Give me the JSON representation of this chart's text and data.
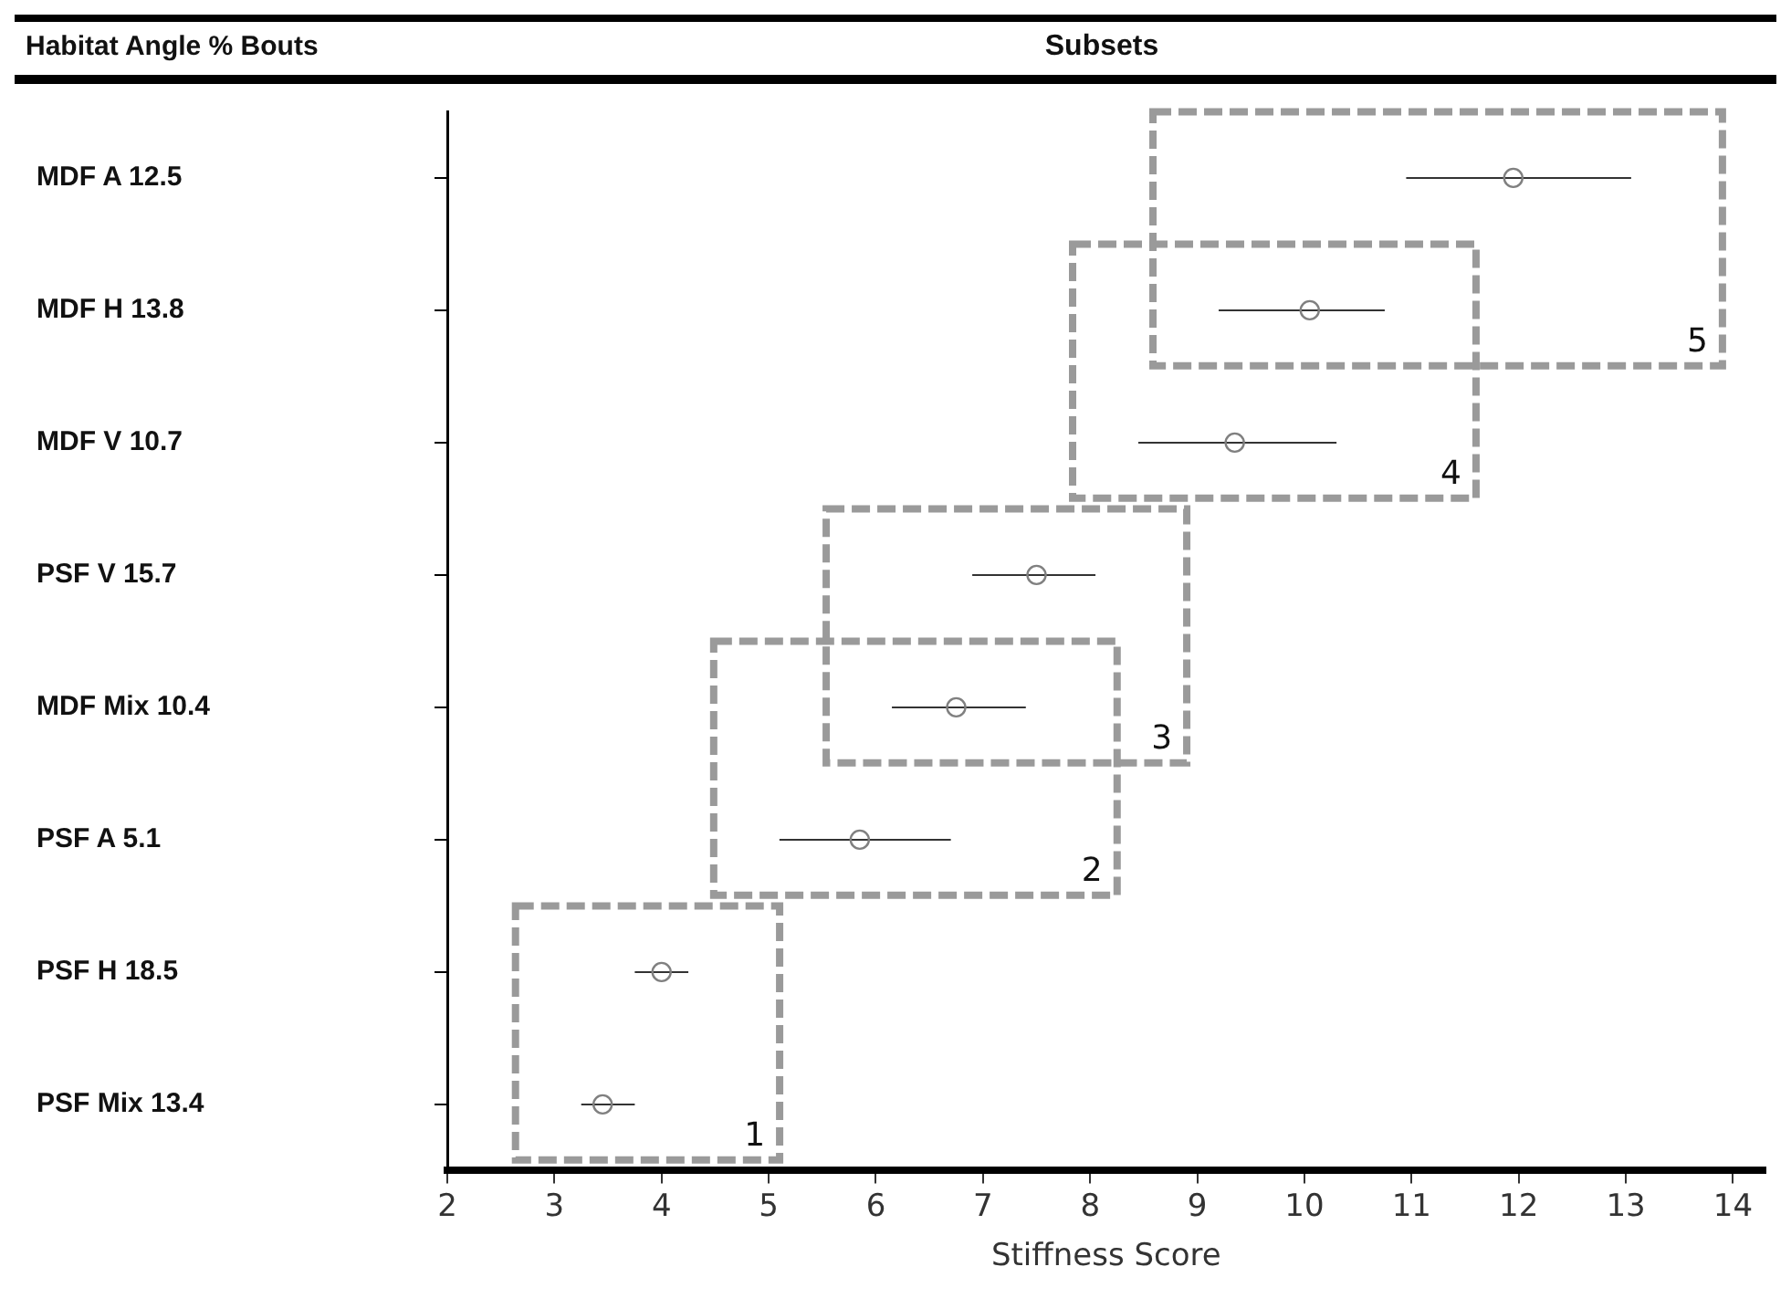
{
  "chart_data": {
    "type": "scatter",
    "orientation": "horizontal",
    "title": "Subsets",
    "xlabel": "Stiffness Score",
    "categories": [
      "MDF A 12.5",
      "MDF H 13.8",
      "MDF V 10.7",
      "PSF V 15.7",
      "MDF Mix 10.4",
      "PSF A 5.1",
      "PSF H 18.5",
      "PSF Mix 13.4"
    ],
    "series": [
      {
        "color": "#808080",
        "values": [
          11.95,
          10.05,
          9.35,
          7.5,
          6.75,
          5.85,
          4.0,
          3.45
        ],
        "errors": [
          [
            10.95,
            13.05
          ],
          [
            9.2,
            10.75
          ],
          [
            8.45,
            10.3
          ],
          [
            6.9,
            8.05
          ],
          [
            6.15,
            7.4
          ],
          [
            5.1,
            6.7
          ],
          [
            3.75,
            4.25
          ],
          [
            3.25,
            3.75
          ]
        ]
      }
    ],
    "xlim": [
      2,
      14.3
    ],
    "xticks": [
      2,
      3,
      4,
      5,
      6,
      7,
      8,
      9,
      10,
      11,
      12,
      13,
      14
    ],
    "marker": "circle",
    "grid": false,
    "legend": false,
    "annotations": [
      "Habitat Angle % Bouts",
      "1",
      "2",
      "3",
      "4",
      "5"
    ]
  }
}
